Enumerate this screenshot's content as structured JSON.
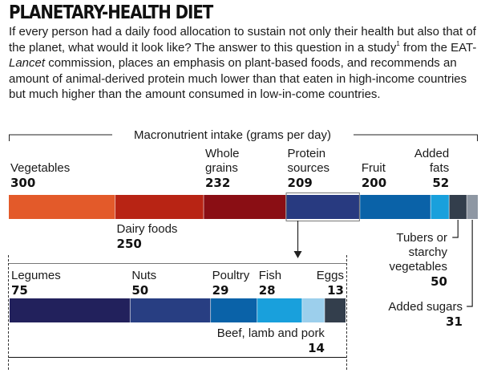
{
  "header": {
    "title": "PLANETARY-HEALTH DIET",
    "intro_part1": "If every person had a daily food allocation to sustain not only their health but also that of the planet, what would it look like? The answer to this question in a study",
    "intro_sup": "1",
    "intro_part2": " from the EAT-",
    "intro_italic": "Lancet",
    "intro_part3": " commission, places an emphasis on plant-based foods, and recommends an amount of animal-derived protein much lower than that eaten in high-income countries but much higher than the amount consumed in low-in-come countries."
  },
  "chart_data": [
    {
      "type": "bar",
      "orientation": "horizontal-stacked",
      "title": "Macronutrient intake (grams per day)",
      "unit": "grams per day",
      "categories": [
        "Vegetables",
        "Dairy foods",
        "Whole grains",
        "Protein sources",
        "Fruit",
        "Added fats",
        "Tubers or starchy vegetables",
        "Added sugars"
      ],
      "values": [
        300,
        250,
        232,
        209,
        200,
        52,
        50,
        31
      ],
      "colors": [
        "#e35a2a",
        "#b82414",
        "#8a0e14",
        "#283a80",
        "#0a62a8",
        "#19a0dc",
        "#333e4c",
        "#8e97a3"
      ],
      "label_lines": [
        [
          "Vegetables"
        ],
        [
          "Dairy foods"
        ],
        [
          "Whole",
          "grains"
        ],
        [
          "Protein",
          "sources"
        ],
        [
          "Fruit"
        ],
        [
          "Added",
          "fats"
        ],
        [
          "Tubers or",
          "starchy",
          "vegetables"
        ],
        [
          "Added sugars"
        ]
      ],
      "label_placement": [
        "above",
        "below",
        "above",
        "above",
        "above",
        "above-right",
        "below-leader",
        "below-leader"
      ],
      "highlighted": "Protein sources"
    },
    {
      "type": "bar",
      "orientation": "horizontal-stacked",
      "title": "Protein sources breakdown (grams per day)",
      "unit": "grams per day",
      "categories": [
        "Legumes",
        "Nuts",
        "Poultry",
        "Fish",
        "Beef, lamb and pork",
        "Eggs"
      ],
      "values": [
        75,
        50,
        29,
        28,
        14,
        13
      ],
      "colors": [
        "#22215c",
        "#283e82",
        "#0a62a8",
        "#19a0dc",
        "#9ccfec",
        "#333e4c"
      ],
      "label_lines": [
        [
          "Legumes"
        ],
        [
          "Nuts"
        ],
        [
          "Poultry"
        ],
        [
          "Fish"
        ],
        [
          "Beef, lamb and pork"
        ],
        [
          "Eggs"
        ]
      ],
      "label_placement": [
        "above",
        "above",
        "above",
        "above",
        "below-right",
        "above-right"
      ]
    }
  ]
}
